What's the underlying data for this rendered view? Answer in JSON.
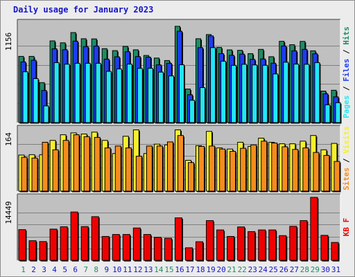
{
  "title": "Daily usage for January 2023",
  "colors": {
    "hits": "#1e8c64",
    "files": "#1e3cf0",
    "pages": "#23e6f5",
    "visits": "#f5f02d",
    "sites": "#f58c1e",
    "kbf": "#f00000",
    "weekend_day": "#1e8c64",
    "weekday": "#1414c8",
    "panel_bg": "#c0c0c0",
    "grid": "#7f7f7f"
  },
  "chart_data": [
    {
      "type": "bar",
      "panel": "hits-files-pages",
      "max_label": "1156",
      "ymax": 1156,
      "legend": {
        "pages": "Pages",
        "files": "Files",
        "hits": "Hits",
        "sep": " / "
      },
      "categories": [
        "1",
        "2",
        "3",
        "4",
        "5",
        "6",
        "7",
        "8",
        "9",
        "10",
        "11",
        "12",
        "13",
        "14",
        "15",
        "16",
        "17",
        "18",
        "19",
        "20",
        "21",
        "22",
        "23",
        "24",
        "25",
        "26",
        "27",
        "28",
        "29",
        "30",
        "31"
      ],
      "series": [
        {
          "name": "Hits",
          "values": [
            795,
            795,
            480,
            981,
            958,
            1081,
            1007,
            1005,
            888,
            864,
            915,
            874,
            806,
            775,
            745,
            1156,
            403,
            1007,
            1057,
            903,
            873,
            868,
            828,
            879,
            791,
            976,
            935,
            975,
            862,
            378,
            388
          ]
        },
        {
          "name": "Files",
          "values": [
            728,
            749,
            386,
            886,
            875,
            978,
            913,
            919,
            762,
            790,
            851,
            793,
            786,
            693,
            712,
            1097,
            335,
            900,
            1041,
            828,
            808,
            822,
            759,
            764,
            713,
            920,
            862,
            879,
            826,
            345,
            309
          ]
        },
        {
          "name": "Pages",
          "values": [
            610,
            528,
            200,
            720,
            701,
            712,
            712,
            712,
            615,
            644,
            702,
            651,
            652,
            606,
            560,
            694,
            268,
            420,
            900,
            737,
            687,
            700,
            692,
            688,
            584,
            725,
            702,
            700,
            720,
            213,
            239
          ]
        }
      ]
    },
    {
      "type": "bar",
      "panel": "visits-sites",
      "max_label": "164",
      "ymax": 164,
      "legend": {
        "sites": "Sites",
        "visits": "Visits",
        "sep": " / "
      },
      "categories": [
        "1",
        "2",
        "3",
        "4",
        "5",
        "6",
        "7",
        "8",
        "9",
        "10",
        "11",
        "12",
        "13",
        "14",
        "15",
        "16",
        "17",
        "18",
        "19",
        "20",
        "21",
        "22",
        "23",
        "24",
        "25",
        "26",
        "27",
        "28",
        "29",
        "30",
        "31"
      ],
      "series": [
        {
          "name": "Visits",
          "values": [
            96,
            97,
            97,
            135,
            150,
            155,
            152,
            157,
            135,
            100,
            146,
            163,
            100,
            125,
            123,
            163,
            82,
            121,
            159,
            115,
            112,
            130,
            119,
            141,
            130,
            126,
            126,
            133,
            148,
            110,
            127
          ]
        },
        {
          "name": "Sites",
          "values": [
            90,
            88,
            130,
            110,
            135,
            150,
            145,
            143,
            115,
            120,
            115,
            93,
            120,
            120,
            131,
            148,
            76,
            119,
            120,
            112,
            106,
            114,
            123,
            133,
            128,
            118,
            111,
            115,
            103,
            95,
            79
          ]
        }
      ]
    },
    {
      "type": "bar",
      "panel": "kbf",
      "max_label": "14449",
      "ymax": 14449,
      "legend": {
        "kbf": "KB F"
      },
      "categories": [
        "1",
        "2",
        "3",
        "4",
        "5",
        "6",
        "7",
        "8",
        "9",
        "10",
        "11",
        "12",
        "13",
        "14",
        "15",
        "16",
        "17",
        "18",
        "19",
        "20",
        "21",
        "22",
        "23",
        "24",
        "25",
        "26",
        "27",
        "28",
        "29",
        "30",
        "31"
      ],
      "series": [
        {
          "name": "KB F",
          "values": [
            7050,
            4510,
            4320,
            7170,
            7710,
            11090,
            7750,
            10020,
            5490,
            5940,
            5940,
            7430,
            5940,
            5300,
            5070,
            9750,
            2890,
            4280,
            9120,
            6980,
            5490,
            7670,
            6600,
            6980,
            6980,
            5680,
            7810,
            9120,
            14449,
            5740,
            4110
          ]
        }
      ]
    }
  ],
  "weekend_days": [
    1,
    7,
    8,
    14,
    15,
    21,
    22,
    28,
    29
  ]
}
